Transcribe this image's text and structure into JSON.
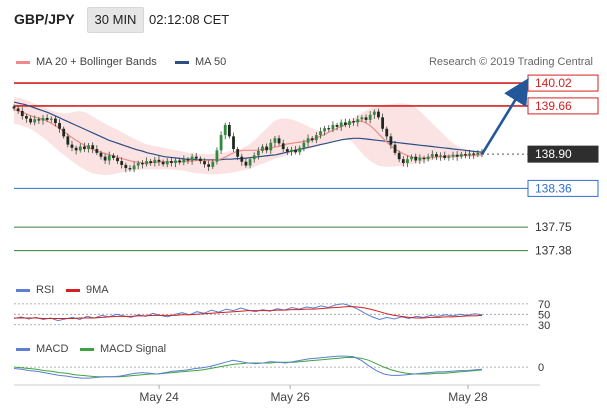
{
  "header": {
    "symbol": "GBP/JPY",
    "timeframe": "30 MIN",
    "clock": "02:12:08 CET"
  },
  "legend": {
    "ma20_label": "MA 20 + Bollinger Bands",
    "ma50_label": "MA 50",
    "rsi_label": "RSI",
    "rsi_ma_label": "9MA",
    "macd_label": "MACD",
    "macd_signal_label": "MACD Signal"
  },
  "copyright": "Research © 2019 Trading Central",
  "colors": {
    "ma20": "#f08a8a",
    "ma50": "#2b4f84",
    "bands_fill": "#fbdede",
    "resistance": "#d42020",
    "support": "#2f6fcf",
    "target": "#3a7d3a",
    "arrow": "#24579a",
    "rsi": "#5b7fd1",
    "rsi_ma": "#d42020",
    "macd": "#5b7fd1",
    "macd_signal": "#3fa33f",
    "price_badge": "#2e2e2e"
  },
  "chart_data": [
    {
      "type": "candlestick",
      "name": "price",
      "x_ticks": [
        "May 24",
        "May 26",
        "May 28"
      ],
      "ylim": [
        137.2,
        140.1
      ],
      "levels": [
        {
          "label": "140.02",
          "value": 140.02,
          "kind": "resistance"
        },
        {
          "label": "139.66",
          "value": 139.66,
          "kind": "resistance"
        },
        {
          "label": "138.90",
          "value": 138.9,
          "kind": "current"
        },
        {
          "label": "138.36",
          "value": 138.36,
          "kind": "support"
        },
        {
          "label": "137.75",
          "value": 137.75,
          "kind": "target"
        },
        {
          "label": "137.38",
          "value": 137.38,
          "kind": "target"
        }
      ],
      "close": [
        139.62,
        139.58,
        139.5,
        139.46,
        139.4,
        139.45,
        139.43,
        139.47,
        139.44,
        139.46,
        139.39,
        139.3,
        139.18,
        139.05,
        139.0,
        138.96,
        139.02,
        138.98,
        139.04,
        138.98,
        138.92,
        138.86,
        138.8,
        138.88,
        138.84,
        138.79,
        138.73,
        138.68,
        138.66,
        138.72,
        138.76,
        138.74,
        138.79,
        138.76,
        138.81,
        138.78,
        138.74,
        138.79,
        138.76,
        138.8,
        138.77,
        138.82,
        138.8,
        138.86,
        138.83,
        138.79,
        138.74,
        138.7,
        138.78,
        138.96,
        139.2,
        139.36,
        139.18,
        138.98,
        138.86,
        138.78,
        138.72,
        138.82,
        138.88,
        138.95,
        139.02,
        138.96,
        139.08,
        139.15,
        139.07,
        138.98,
        138.94,
        138.97,
        138.93,
        139.0,
        139.08,
        139.15,
        139.12,
        139.2,
        139.26,
        139.31,
        139.29,
        139.36,
        139.33,
        139.4,
        139.36,
        139.42,
        139.4,
        139.45,
        139.48,
        139.44,
        139.52,
        139.57,
        139.48,
        139.3,
        139.18,
        139.05,
        138.92,
        138.82,
        138.76,
        138.82,
        138.86,
        138.8,
        138.84,
        138.82,
        138.86,
        138.9,
        138.86,
        138.88,
        138.84,
        138.86,
        138.89,
        138.86,
        138.9,
        138.88,
        138.91,
        138.89,
        138.92,
        138.9
      ],
      "ma20": [
        139.6,
        139.58,
        139.56,
        139.53,
        139.5,
        139.48,
        139.46,
        139.44,
        139.41,
        139.37,
        139.33,
        139.28,
        139.23,
        139.18,
        139.13,
        139.09,
        139.05,
        139.01,
        138.98,
        138.95,
        138.93,
        138.91,
        138.89,
        138.87,
        138.85,
        138.83,
        138.81,
        138.79,
        138.78,
        138.77,
        138.76,
        138.76,
        138.77,
        138.77,
        138.78,
        138.78,
        138.78,
        138.78,
        138.78,
        138.78,
        138.79,
        138.79,
        138.8,
        138.8,
        138.8,
        138.8,
        138.8,
        138.81,
        138.83,
        138.86,
        138.9,
        138.93,
        138.95,
        138.96,
        138.96,
        138.96,
        138.96,
        138.97,
        138.98,
        138.99,
        139.01,
        139.02,
        139.04,
        139.06,
        139.07,
        139.08,
        139.09,
        139.1,
        139.11,
        139.13,
        139.16,
        139.19,
        139.22,
        139.26,
        139.29,
        139.32,
        139.35,
        139.38,
        139.4,
        139.42,
        139.42,
        139.4,
        139.36,
        139.3,
        139.23,
        139.16,
        139.09,
        139.03,
        138.98,
        138.94,
        138.9,
        138.87,
        138.85,
        138.84,
        138.84,
        138.84,
        138.85,
        138.85,
        138.86,
        138.86,
        138.87,
        138.87,
        138.87,
        138.88,
        138.88,
        138.88,
        138.88,
        138.89,
        138.89
      ],
      "ma50": [
        139.72,
        139.7,
        139.68,
        139.65,
        139.62,
        139.59,
        139.56,
        139.52,
        139.48,
        139.44,
        139.4,
        139.36,
        139.32,
        139.28,
        139.24,
        139.2,
        139.16,
        139.12,
        139.09,
        139.06,
        139.03,
        139.0,
        138.97,
        138.95,
        138.92,
        138.9,
        138.88,
        138.86,
        138.85,
        138.84,
        138.83,
        138.82,
        138.82,
        138.81,
        138.81,
        138.81,
        138.81,
        138.81,
        138.82,
        138.82,
        138.83,
        138.83,
        138.84,
        138.85,
        138.86,
        138.87,
        138.88,
        138.89,
        138.91,
        138.93,
        138.95,
        138.97,
        138.99,
        139.01,
        139.03,
        139.05,
        139.07,
        139.09,
        139.11,
        139.13,
        139.14,
        139.15,
        139.15,
        139.14,
        139.13,
        139.12,
        139.11,
        139.1,
        139.09,
        139.08,
        139.07,
        139.06,
        139.05,
        139.04,
        139.03,
        139.02,
        139.01,
        139.0,
        138.99,
        138.98,
        138.97,
        138.96,
        138.95,
        138.94,
        138.93
      ],
      "bb_upper": [
        139.8,
        139.78,
        139.75,
        139.7,
        139.66,
        139.62,
        139.58,
        139.55,
        139.54,
        139.56,
        139.58,
        139.56,
        139.5,
        139.44,
        139.38,
        139.33,
        139.28,
        139.22,
        139.17,
        139.12,
        139.07,
        139.04,
        139.02,
        139.0,
        138.98,
        138.96,
        138.94,
        138.92,
        138.9,
        138.9,
        138.9,
        138.91,
        138.92,
        138.94,
        138.96,
        138.99,
        139.04,
        139.12,
        139.22,
        139.32,
        139.42,
        139.46,
        139.46,
        139.44,
        139.4,
        139.35,
        139.3,
        139.27,
        139.26,
        139.28,
        139.32,
        139.38,
        139.45,
        139.52,
        139.58,
        139.63,
        139.66,
        139.68,
        139.69,
        139.7,
        139.7,
        139.68,
        139.62,
        139.52,
        139.42,
        139.32,
        139.22,
        139.12,
        139.04,
        138.99,
        138.96,
        138.95,
        138.95
      ],
      "bb_lower": [
        139.38,
        139.36,
        139.32,
        139.27,
        139.2,
        139.12,
        139.03,
        138.94,
        138.86,
        138.78,
        138.71,
        138.65,
        138.6,
        138.58,
        138.57,
        138.58,
        138.6,
        138.62,
        138.64,
        138.65,
        138.66,
        138.66,
        138.66,
        138.66,
        138.66,
        138.65,
        138.64,
        138.62,
        138.6,
        138.59,
        138.58,
        138.58,
        138.59,
        138.6,
        138.62,
        138.64,
        138.66,
        138.7,
        138.74,
        138.78,
        138.82,
        138.85,
        138.88,
        138.91,
        138.94,
        138.97,
        139.0,
        139.03,
        139.06,
        139.1,
        139.14,
        139.16,
        139.1,
        138.98,
        138.86,
        138.78,
        138.72,
        138.7,
        138.7,
        138.71,
        138.72,
        138.74,
        138.76,
        138.78,
        138.8,
        138.82,
        138.83,
        138.84,
        138.84,
        138.85,
        138.85,
        138.85,
        138.86
      ],
      "projection": {
        "from": 138.9,
        "to": 140.02
      }
    },
    {
      "type": "line",
      "name": "rsi",
      "levels": [
        70,
        50,
        30
      ],
      "level_labels": [
        "70",
        "50",
        "30"
      ],
      "ylim": [
        20,
        85
      ],
      "series": [
        {
          "name": "RSI",
          "values": [
            42,
            45,
            41,
            44,
            40,
            43,
            38,
            41,
            44,
            40,
            46,
            43,
            48,
            45,
            50,
            47,
            44,
            49,
            46,
            52,
            48,
            45,
            50,
            53,
            49,
            55,
            52,
            58,
            54,
            60,
            57,
            62,
            58,
            55,
            59,
            56,
            61,
            58,
            63,
            60,
            64,
            62,
            66,
            63,
            68,
            70,
            66,
            60,
            52,
            45,
            40,
            44,
            41,
            45,
            42,
            46,
            44,
            48,
            46,
            49,
            47,
            50,
            48,
            51,
            49
          ]
        },
        {
          "name": "9MA",
          "values": [
            43,
            43,
            43,
            43,
            42,
            42,
            42,
            42,
            42,
            43,
            43,
            43,
            44,
            45,
            46,
            46,
            46,
            47,
            47,
            48,
            48,
            48,
            48,
            49,
            49,
            50,
            51,
            52,
            53,
            54,
            55,
            56,
            57,
            57,
            57,
            57,
            58,
            58,
            59,
            59,
            60,
            60,
            61,
            62,
            63,
            64,
            65,
            64,
            62,
            59,
            55,
            51,
            48,
            46,
            44,
            43,
            43,
            44,
            44,
            45,
            45,
            46,
            47,
            47,
            48
          ]
        }
      ]
    },
    {
      "type": "line",
      "name": "macd",
      "levels": [
        0
      ],
      "level_labels": [
        "0"
      ],
      "ylim": [
        -0.26,
        0.22
      ],
      "series": [
        {
          "name": "MACD",
          "values": [
            -0.02,
            -0.03,
            -0.05,
            -0.06,
            -0.08,
            -0.1,
            -0.12,
            -0.13,
            -0.15,
            -0.16,
            -0.16,
            -0.15,
            -0.14,
            -0.14,
            -0.13,
            -0.11,
            -0.09,
            -0.08,
            -0.09,
            -0.1,
            -0.08,
            -0.06,
            -0.05,
            -0.04,
            -0.02,
            -0.01,
            0.01,
            0.04,
            0.07,
            0.1,
            0.08,
            0.06,
            0.05,
            0.06,
            0.08,
            0.07,
            0.06,
            0.08,
            0.1,
            0.12,
            0.13,
            0.14,
            0.15,
            0.16,
            0.16,
            0.15,
            0.1,
            0.02,
            -0.05,
            -0.1,
            -0.12,
            -0.12,
            -0.11,
            -0.1,
            -0.09,
            -0.08,
            -0.07,
            -0.07,
            -0.06,
            -0.05,
            -0.05,
            -0.04,
            -0.03
          ]
        },
        {
          "name": "MACD Signal",
          "values": [
            0.0,
            -0.01,
            -0.02,
            -0.03,
            -0.05,
            -0.06,
            -0.08,
            -0.09,
            -0.11,
            -0.12,
            -0.13,
            -0.14,
            -0.14,
            -0.14,
            -0.14,
            -0.13,
            -0.12,
            -0.11,
            -0.1,
            -0.1,
            -0.09,
            -0.08,
            -0.07,
            -0.06,
            -0.05,
            -0.04,
            -0.02,
            0.0,
            0.02,
            0.04,
            0.05,
            0.06,
            0.06,
            0.06,
            0.06,
            0.07,
            0.07,
            0.07,
            0.08,
            0.09,
            0.1,
            0.11,
            0.12,
            0.13,
            0.14,
            0.14,
            0.13,
            0.1,
            0.05,
            0.0,
            -0.04,
            -0.07,
            -0.09,
            -0.1,
            -0.1,
            -0.1,
            -0.09,
            -0.09,
            -0.08,
            -0.07,
            -0.06,
            -0.05,
            -0.04
          ]
        }
      ]
    }
  ]
}
